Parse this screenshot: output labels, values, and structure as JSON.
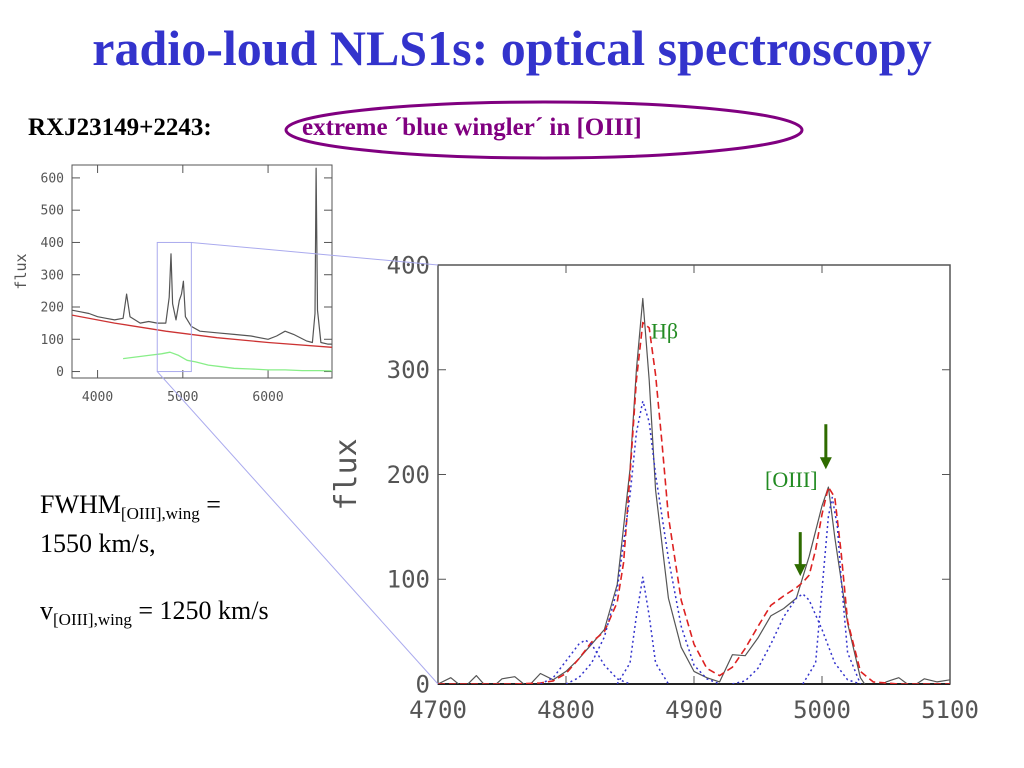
{
  "title": "radio-loud NLS1s: optical spectroscopy",
  "object_label": "RXJ23149+2243:",
  "highlight_text": "extreme ´blue wingler´ in [OIII]",
  "params": {
    "fwhm_prefix": "FWHM",
    "fwhm_sub": "[OIII],wing",
    "fwhm_value_a": " =",
    "fwhm_value_b": "1550 km/s,",
    "v_prefix": "v",
    "v_sub": "[OIII],wing",
    "v_value": " = 1250 km/s"
  },
  "colors": {
    "title": "#3333cc",
    "highlight": "#800080",
    "annotation": "#228b22",
    "arrow": "#2e6b00",
    "observed": "#555555",
    "fit_total": "#dd2222",
    "fit_components": "#3333cc",
    "continuum": "#cc3333",
    "residual": "#88ee88",
    "zoom_box": "#aaaaee"
  },
  "chart_data": [
    {
      "type": "line",
      "title": "",
      "xlabel": "",
      "ylabel": "flux",
      "xlim": [
        3700,
        6750
      ],
      "ylim": [
        -20,
        640
      ],
      "xticks": [
        4000,
        5000,
        6000
      ],
      "yticks": [
        0,
        100,
        200,
        300,
        400,
        500,
        600
      ],
      "series": [
        {
          "style": "solid-gray",
          "x": [
            3700,
            3800,
            3900,
            4000,
            4100,
            4200,
            4300,
            4340,
            4380,
            4500,
            4600,
            4700,
            4800,
            4840,
            4861,
            4880,
            4920,
            4959,
            4985,
            5007,
            5030,
            5100,
            5200,
            5400,
            5600,
            5800,
            6000,
            6100,
            6200,
            6300,
            6450,
            6520,
            6550,
            6563,
            6580,
            6620,
            6700,
            6750
          ],
          "y": [
            190,
            185,
            180,
            170,
            165,
            160,
            165,
            240,
            170,
            150,
            155,
            150,
            150,
            230,
            365,
            210,
            160,
            220,
            240,
            280,
            170,
            140,
            125,
            120,
            115,
            110,
            100,
            110,
            125,
            115,
            95,
            90,
            180,
            630,
            190,
            90,
            85,
            85
          ]
        },
        {
          "style": "solid-red",
          "x": [
            3700,
            4200,
            4800,
            5400,
            6000,
            6750
          ],
          "y": [
            175,
            150,
            125,
            105,
            90,
            75
          ]
        },
        {
          "style": "solid-green",
          "x": [
            4300,
            4450,
            4600,
            4750,
            4850,
            4950,
            5050,
            5150,
            5300,
            5450,
            5600,
            5800,
            6000,
            6200,
            6400,
            6600,
            6750
          ],
          "y": [
            40,
            45,
            50,
            55,
            60,
            50,
            35,
            30,
            20,
            15,
            10,
            8,
            5,
            5,
            3,
            3,
            2
          ]
        }
      ],
      "zoom_box": {
        "x": [
          4700,
          5100
        ],
        "y": [
          0,
          400
        ]
      }
    },
    {
      "type": "line",
      "title": "",
      "xlabel": "",
      "ylabel": "flux",
      "xlim": [
        4700,
        5100
      ],
      "ylim": [
        0,
        400
      ],
      "xticks": [
        4700,
        4800,
        4900,
        5000,
        5100
      ],
      "yticks": [
        0,
        100,
        200,
        300,
        400
      ],
      "series": [
        {
          "style": "solid-gray",
          "x": [
            4700,
            4710,
            4720,
            4730,
            4740,
            4750,
            4760,
            4770,
            4780,
            4790,
            4800,
            4810,
            4820,
            4830,
            4840,
            4850,
            4855,
            4860,
            4865,
            4870,
            4880,
            4890,
            4900,
            4910,
            4920,
            4930,
            4940,
            4950,
            4960,
            4970,
            4980,
            4990,
            5000,
            5005,
            5010,
            5020,
            5030,
            5040,
            5050,
            5060,
            5070,
            5080,
            5090,
            5100
          ],
          "y": [
            0,
            6,
            -4,
            8,
            -6,
            5,
            7,
            -3,
            10,
            4,
            12,
            24,
            38,
            52,
            95,
            205,
            300,
            368,
            290,
            185,
            82,
            35,
            12,
            6,
            2,
            28,
            27,
            44,
            65,
            72,
            82,
            122,
            170,
            188,
            140,
            58,
            6,
            -12,
            2,
            6,
            -3,
            5,
            2,
            4
          ]
        },
        {
          "style": "dashed-red",
          "x": [
            4700,
            4720,
            4740,
            4760,
            4780,
            4790,
            4800,
            4810,
            4820,
            4830,
            4840,
            4845,
            4850,
            4855,
            4860,
            4865,
            4870,
            4875,
            4880,
            4890,
            4900,
            4910,
            4920,
            4930,
            4940,
            4950,
            4960,
            4970,
            4980,
            4985,
            4990,
            4995,
            5000,
            5005,
            5010,
            5015,
            5020,
            5030,
            5040,
            5060,
            5100
          ],
          "y": [
            0,
            0,
            0,
            0,
            1,
            3,
            10,
            24,
            40,
            50,
            78,
            116,
            200,
            290,
            345,
            340,
            295,
            230,
            160,
            80,
            38,
            15,
            8,
            16,
            34,
            55,
            75,
            84,
            92,
            97,
            104,
            128,
            162,
            188,
            178,
            125,
            60,
            12,
            2,
            0,
            0
          ]
        },
        {
          "style": "dotted-blue",
          "x": [
            4780,
            4790,
            4800,
            4810,
            4815,
            4820,
            4830,
            4840,
            4850
          ],
          "y": [
            0,
            6,
            22,
            38,
            42,
            38,
            18,
            5,
            0
          ]
        },
        {
          "style": "dotted-blue",
          "x": [
            4800,
            4810,
            4820,
            4830,
            4840,
            4850,
            4855,
            4860,
            4865,
            4870,
            4880,
            4890,
            4900,
            4910,
            4920
          ],
          "y": [
            0,
            6,
            20,
            45,
            90,
            180,
            240,
            270,
            250,
            200,
            120,
            55,
            18,
            5,
            0
          ]
        },
        {
          "style": "dotted-blue",
          "x": [
            4840,
            4850,
            4855,
            4860,
            4865,
            4870,
            4880
          ],
          "y": [
            0,
            20,
            65,
            102,
            65,
            20,
            0
          ]
        },
        {
          "style": "dotted-blue",
          "x": [
            4930,
            4940,
            4950,
            4960,
            4970,
            4980,
            4985,
            4990,
            5000,
            5010,
            5020,
            5030
          ],
          "y": [
            0,
            3,
            15,
            38,
            64,
            82,
            86,
            80,
            52,
            20,
            4,
            0
          ]
        },
        {
          "style": "dotted-blue",
          "x": [
            4985,
            4995,
            5000,
            5005,
            5008,
            5012,
            5015,
            5020,
            5030
          ],
          "y": [
            0,
            20,
            90,
            160,
            178,
            150,
            100,
            30,
            0
          ]
        }
      ],
      "annotations": [
        {
          "text": "Hβ",
          "x": 4877,
          "y": 330
        },
        {
          "text": "[OIII]",
          "x": 4976,
          "y": 188
        }
      ],
      "arrows": [
        {
          "x": 5003,
          "y_from": 248,
          "y_to": 205
        },
        {
          "x": 4983,
          "y_from": 145,
          "y_to": 103
        }
      ]
    }
  ]
}
